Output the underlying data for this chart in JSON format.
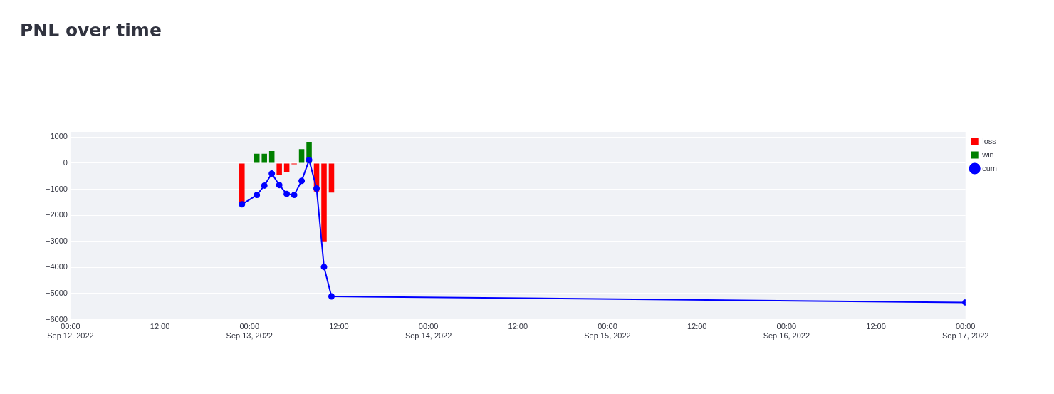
{
  "chart_data": {
    "type": "bar",
    "title": "PNL over time",
    "xlim": [
      "2022-09-12T00:00",
      "2022-09-17T00:00"
    ],
    "xticks": [
      {
        "value": "2022-09-12T00:00",
        "label": "00:00\nSep 12, 2022"
      },
      {
        "value": "2022-09-12T12:00",
        "label": "12:00"
      },
      {
        "value": "2022-09-13T00:00",
        "label": "00:00\nSep 13, 2022"
      },
      {
        "value": "2022-09-13T12:00",
        "label": "12:00"
      },
      {
        "value": "2022-09-14T00:00",
        "label": "00:00\nSep 14, 2022"
      },
      {
        "value": "2022-09-14T12:00",
        "label": "12:00"
      },
      {
        "value": "2022-09-15T00:00",
        "label": "00:00\nSep 15, 2022"
      },
      {
        "value": "2022-09-15T12:00",
        "label": "12:00"
      },
      {
        "value": "2022-09-16T00:00",
        "label": "00:00\nSep 16, 2022"
      },
      {
        "value": "2022-09-16T12:00",
        "label": "12:00"
      },
      {
        "value": "2022-09-17T00:00",
        "label": "00:00\nSep 17, 2022"
      }
    ],
    "ylim": [
      -6000,
      1200
    ],
    "yticks": [
      -6000,
      -5000,
      -4000,
      -3000,
      -2000,
      -1000,
      0,
      1000
    ],
    "grid": "y",
    "legend": "top right",
    "marker": "circle",
    "line_style": "solid",
    "series": [
      {
        "name": "loss",
        "color": "#ff0000",
        "x": [
          "2022-09-12T23:00",
          "2022-09-13T04:00",
          "2022-09-13T05:00",
          "2022-09-13T06:00",
          "2022-09-13T09:00",
          "2022-09-13T10:00",
          "2022-09-13T11:00"
        ],
        "values": [
          -1580,
          -440,
          -340,
          -40,
          -1090,
          -3000,
          -1130
        ]
      },
      {
        "name": "win",
        "color": "#008000",
        "x": [
          "2022-09-13T01:00",
          "2022-09-13T02:00",
          "2022-09-13T03:00",
          "2022-09-13T07:00",
          "2022-09-13T08:00"
        ],
        "values": [
          360,
          360,
          460,
          540,
          800
        ]
      },
      {
        "name": "cum",
        "type": "line",
        "color": "#0000ff",
        "x": [
          "2022-09-12T23:00",
          "2022-09-13T01:00",
          "2022-09-13T02:00",
          "2022-09-13T03:00",
          "2022-09-13T04:00",
          "2022-09-13T05:00",
          "2022-09-13T06:00",
          "2022-09-13T07:00",
          "2022-09-13T08:00",
          "2022-09-13T09:00",
          "2022-09-13T10:00",
          "2022-09-13T11:00",
          "2022-09-17T00:00"
        ],
        "values": [
          -1580,
          -1220,
          -860,
          -400,
          -840,
          -1180,
          -1220,
          -680,
          120,
          -970,
          -3980,
          -5110,
          -5340
        ]
      }
    ]
  }
}
